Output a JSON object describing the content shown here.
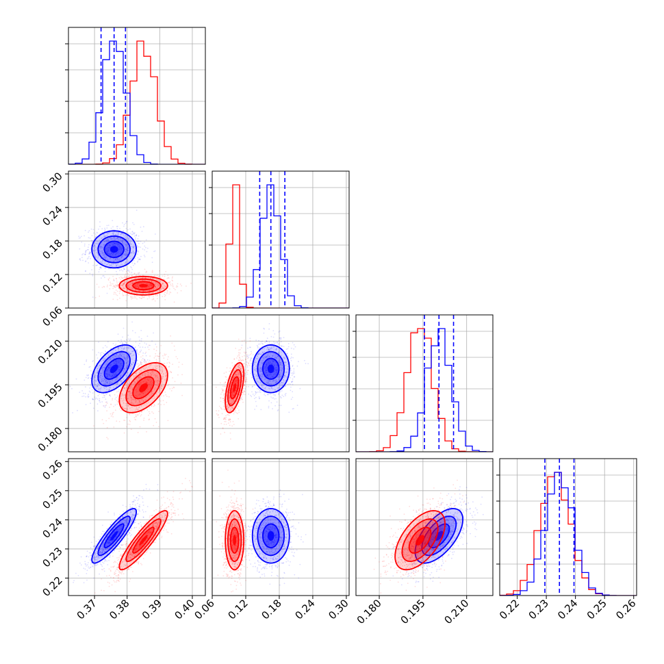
{
  "chart_data": {
    "type": "corner",
    "colors": {
      "blue": "#0000ff",
      "red": "#ff0000"
    },
    "params": [
      {
        "range": [
          0.362,
          0.404
        ],
        "ticks": [
          "0.37",
          "0.38",
          "0.39",
          "0.40"
        ]
      },
      {
        "range": [
          0.06,
          0.305
        ],
        "ticks": [
          "0.06",
          "0.12",
          "0.18",
          "0.24",
          "0.30"
        ]
      },
      {
        "range": [
          0.172,
          0.219
        ],
        "ticks": [
          "0.180",
          "0.195",
          "0.210"
        ]
      },
      {
        "range": [
          0.214,
          0.261
        ],
        "ticks": [
          "0.22",
          "0.23",
          "0.24",
          "0.25",
          "0.26"
        ]
      }
    ],
    "series": [
      {
        "color": "blue",
        "mean": [
          0.376,
          0.165,
          0.2005,
          0.2345
        ],
        "std": [
          0.0035,
          0.017,
          0.0042,
          0.0048
        ],
        "corr": {
          "0-3": 0.88,
          "2-3": 0.6,
          "0-2": 0.5
        },
        "quantiles": [
          [
            0.372,
            0.376,
            0.3795
          ],
          [
            0.145,
            0.165,
            0.19
          ],
          [
            0.1955,
            0.2005,
            0.2055
          ],
          [
            0.2295,
            0.2345,
            0.2395
          ]
        ]
      },
      {
        "color": "red",
        "mean": [
          0.385,
          0.1,
          0.194,
          0.233
        ],
        "std": [
          0.0038,
          0.0085,
          0.0044,
          0.0052
        ],
        "corr": {
          "0-3": 0.9,
          "2-3": 0.55,
          "0-2": 0.5,
          "1-2": 0.55
        }
      }
    ]
  }
}
